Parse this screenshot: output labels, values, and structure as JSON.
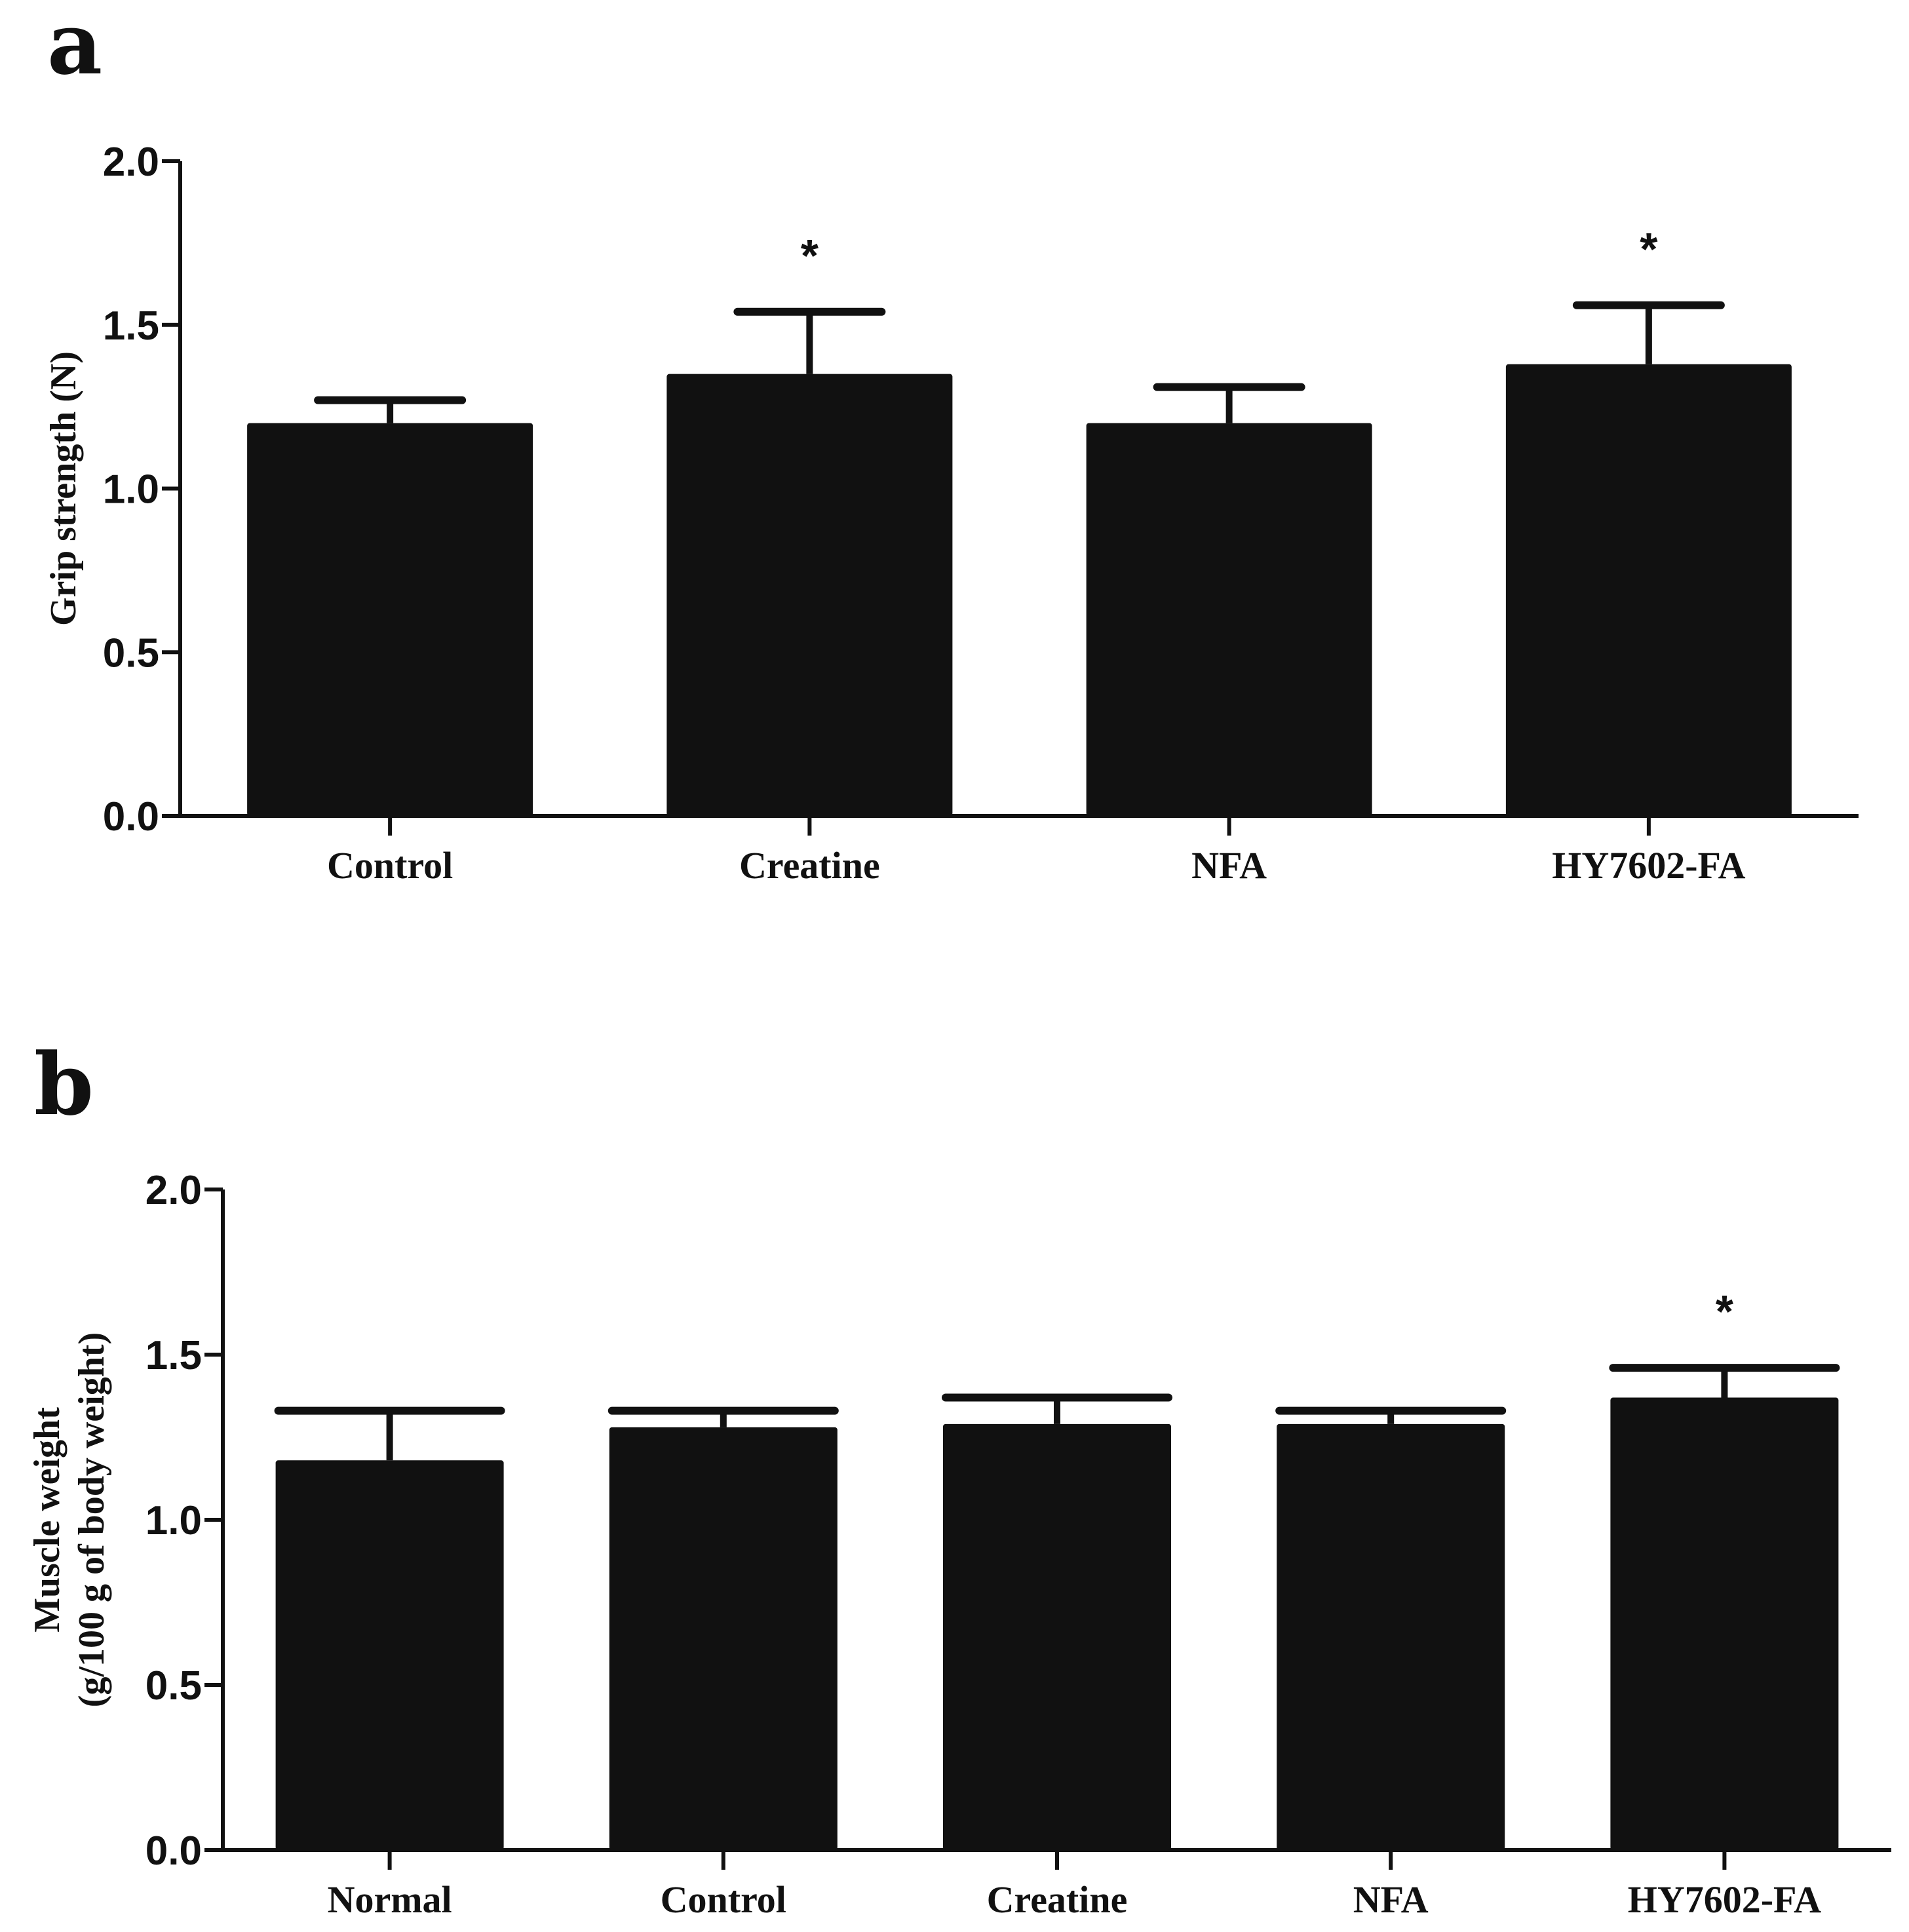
{
  "chart_data": [
    {
      "type": "bar",
      "panel": "a",
      "title": "",
      "xlabel": "",
      "ylabel": "Grip strength (N)",
      "ylabel_lines": [
        "Grip strength (N)"
      ],
      "categories": [
        "Control",
        "Creatine",
        "NFA",
        "HY7602-FA"
      ],
      "values": [
        1.2,
        1.35,
        1.2,
        1.38
      ],
      "errors": [
        0.07,
        0.19,
        0.11,
        0.18
      ],
      "significance": [
        "",
        "*",
        "",
        "*"
      ],
      "ylim": [
        0,
        2.0
      ],
      "yticks": [
        0.0,
        0.5,
        1.0,
        1.5,
        2.0
      ],
      "ytick_labels": [
        "0.0",
        "0.5",
        "1.0",
        "1.5",
        "2.0"
      ],
      "bar_color": "#111111",
      "grid": false
    },
    {
      "type": "bar",
      "panel": "b",
      "title": "",
      "xlabel": "",
      "ylabel": "Muscle weight (g/100 g of body weight)",
      "ylabel_lines": [
        "Muscle weight",
        "(g/100 g of body weight)"
      ],
      "categories": [
        "Normal",
        "Control",
        "Creatine",
        "NFA",
        "HY7602-FA"
      ],
      "values": [
        1.18,
        1.28,
        1.29,
        1.29,
        1.37
      ],
      "errors": [
        0.15,
        0.05,
        0.08,
        0.04,
        0.09
      ],
      "significance": [
        "",
        "",
        "",
        "",
        "*"
      ],
      "ylim": [
        0,
        2.0
      ],
      "yticks": [
        0.0,
        0.5,
        1.0,
        1.5,
        2.0
      ],
      "ytick_labels": [
        "0.0",
        "0.5",
        "1.0",
        "1.5",
        "2.0"
      ],
      "bar_color": "#111111",
      "grid": false
    }
  ]
}
